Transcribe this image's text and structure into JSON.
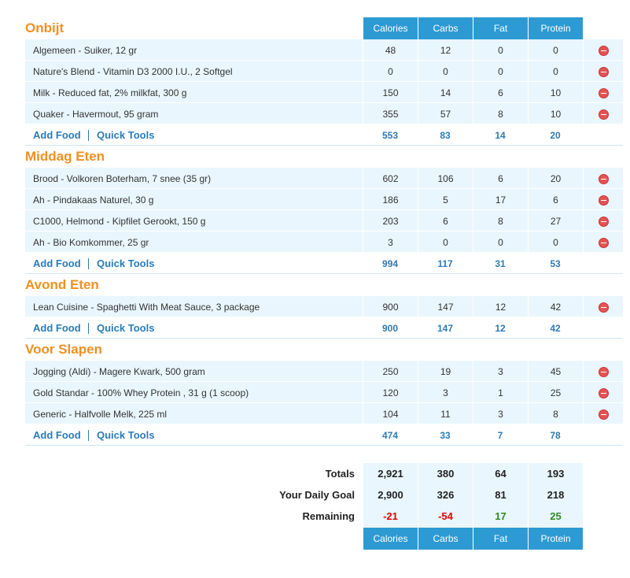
{
  "header": {
    "columns": [
      "Calories",
      "Carbs",
      "Fat",
      "Protein"
    ]
  },
  "links": {
    "add_food": "Add Food",
    "quick_tools": "Quick Tools"
  },
  "meals": [
    {
      "name": "Onbijt",
      "foods": [
        {
          "name": "Algemeen - Suiker, 12 gr",
          "values": [
            48,
            12,
            0,
            0
          ]
        },
        {
          "name": "Nature's Blend - Vitamin D3 2000 I.U., 2 Softgel",
          "values": [
            0,
            0,
            0,
            0
          ]
        },
        {
          "name": "Milk - Reduced fat, 2% milkfat, 300 g",
          "values": [
            150,
            14,
            6,
            10
          ]
        },
        {
          "name": "Quaker - Havermout, 95 gram",
          "values": [
            355,
            57,
            8,
            10
          ]
        }
      ],
      "totals": [
        553,
        83,
        14,
        20
      ]
    },
    {
      "name": "Middag Eten",
      "foods": [
        {
          "name": "Brood - Volkoren Boterham, 7 snee (35 gr)",
          "values": [
            602,
            106,
            6,
            20
          ]
        },
        {
          "name": "Ah - Pindakaas Naturel, 30 g",
          "values": [
            186,
            5,
            17,
            6
          ]
        },
        {
          "name": "C1000, Helmond - Kipfilet Gerookt, 150 g",
          "values": [
            203,
            6,
            8,
            27
          ]
        },
        {
          "name": "Ah - Bio Komkommer, 25 gr",
          "values": [
            3,
            0,
            0,
            0
          ]
        }
      ],
      "totals": [
        994,
        117,
        31,
        53
      ]
    },
    {
      "name": "Avond Eten",
      "foods": [
        {
          "name": "Lean Cuisine - Spaghetti With Meat Sauce, 3 package",
          "values": [
            900,
            147,
            12,
            42
          ]
        }
      ],
      "totals": [
        900,
        147,
        12,
        42
      ]
    },
    {
      "name": "Voor Slapen",
      "foods": [
        {
          "name": "Jogging (Aldi) - Magere Kwark, 500 gram",
          "values": [
            250,
            19,
            3,
            45
          ]
        },
        {
          "name": "Gold Standar - 100% Whey Protein , 31 g (1 scoop)",
          "values": [
            120,
            3,
            1,
            25
          ]
        },
        {
          "name": "Generic - Halfvolle Melk, 225 ml",
          "values": [
            104,
            11,
            3,
            8
          ]
        }
      ],
      "totals": [
        474,
        33,
        7,
        78
      ]
    }
  ],
  "summary": [
    {
      "label": "Totals",
      "values": [
        "2,921",
        380,
        64,
        193
      ]
    },
    {
      "label": "Your Daily Goal",
      "values": [
        "2,900",
        326,
        81,
        218
      ]
    },
    {
      "label": "Remaining",
      "values": [
        -21,
        -54,
        17,
        25
      ]
    }
  ]
}
